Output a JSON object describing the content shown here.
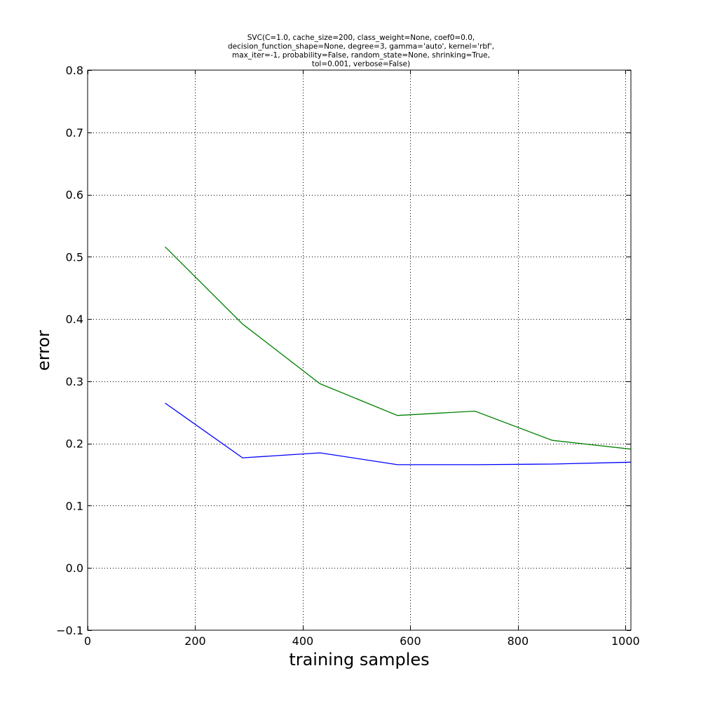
{
  "chart_data": {
    "type": "line",
    "title_lines": [
      "SVC(C=1.0, cache_size=200, class_weight=None, coef0=0.0,",
      "decision_function_shape=None, degree=3, gamma='auto', kernel='rbf',",
      "max_iter=-1, probability=False, random_state=None, shrinking=True,",
      "tol=0.001, verbose=False)"
    ],
    "xlabel": "training samples",
    "ylabel": "error",
    "xlim": [
      0,
      1010
    ],
    "ylim": [
      -0.1,
      0.8
    ],
    "x_ticks": [
      0,
      200,
      400,
      600,
      800,
      1000
    ],
    "x_tick_labels": [
      "0",
      "200",
      "400",
      "600",
      "800",
      "1000"
    ],
    "y_ticks": [
      -0.1,
      0.0,
      0.1,
      0.2,
      0.3,
      0.4,
      0.5,
      0.6,
      0.7,
      0.8
    ],
    "y_tick_labels": [
      "−0.1",
      "0.0",
      "0.1",
      "0.2",
      "0.3",
      "0.4",
      "0.5",
      "0.6",
      "0.7",
      "0.8"
    ],
    "grid": true,
    "x": [
      144,
      288,
      432,
      576,
      720,
      864,
      1010
    ],
    "series": [
      {
        "color": "#0000ff",
        "values": [
          0.265,
          0.177,
          0.185,
          0.166,
          0.166,
          0.167,
          0.17
        ]
      },
      {
        "color": "#008000",
        "values": [
          0.516,
          0.392,
          0.296,
          0.245,
          0.252,
          0.205,
          0.191
        ]
      }
    ]
  }
}
